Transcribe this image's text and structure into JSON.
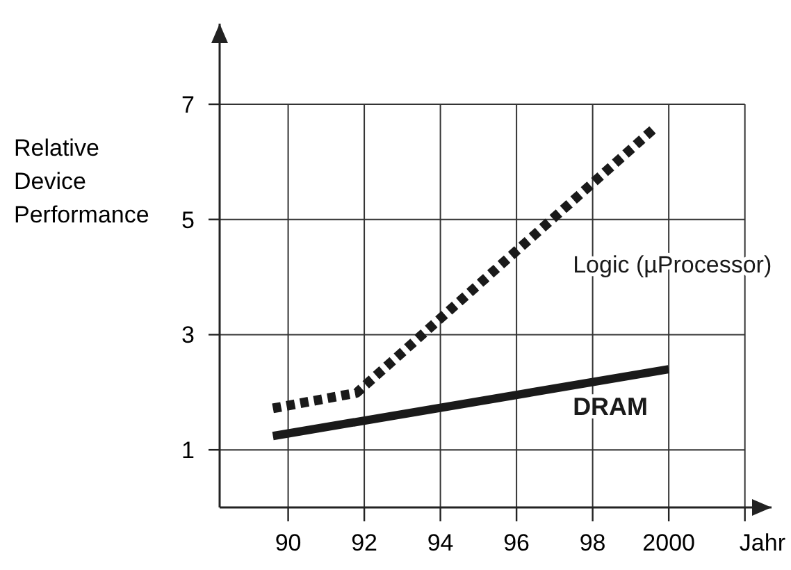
{
  "chart_data": {
    "type": "line",
    "xlabel": "Jahr",
    "ylabel": "Relative Device Performance",
    "xlim": [
      1988.2,
      2002.7
    ],
    "ylim": [
      0,
      8.4
    ],
    "xticks": [
      {
        "value": 1990,
        "label": "90"
      },
      {
        "value": 1992,
        "label": "92"
      },
      {
        "value": 1994,
        "label": "94"
      },
      {
        "value": 1996,
        "label": "96"
      },
      {
        "value": 1998,
        "label": "98"
      },
      2000,
      {
        "value": 2002,
        "label": null
      }
    ],
    "yticks": [
      1,
      3,
      5,
      7
    ],
    "grid": true,
    "marker": "none",
    "series": [
      {
        "name": "Logic (µProcessor)",
        "color": "#1a1a1a",
        "line_style": "dotted",
        "x": [
          1989.6,
          1991.8,
          1999.6
        ],
        "values": [
          1.72,
          1.99,
          6.57
        ]
      },
      {
        "name": "DRAM",
        "color": "#1a1a1a",
        "line_style": "solid",
        "x": [
          1989.6,
          2000
        ],
        "values": [
          1.24,
          2.4
        ]
      }
    ]
  }
}
